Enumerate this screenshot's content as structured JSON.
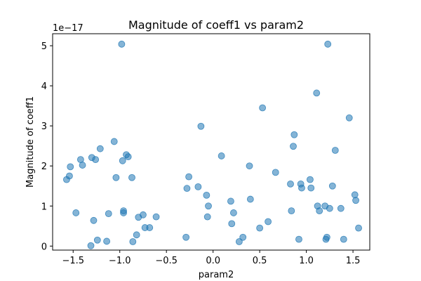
{
  "chart_data": {
    "type": "scatter",
    "title": "Magnitude of coeff1 vs param2",
    "xlabel": "param2",
    "ylabel": "Magnitude of coeff1",
    "y_offset_label": "1e−17",
    "xlim": [
      -1.72,
      1.68
    ],
    "ylim": [
      -0.1,
      5.3
    ],
    "xticks": [
      -1.5,
      -1.0,
      -0.5,
      0.0,
      0.5,
      1.0,
      1.5
    ],
    "xtick_labels": [
      "−1.5",
      "−1.0",
      "−0.5",
      "0.0",
      "0.5",
      "1.0",
      "1.5"
    ],
    "yticks": [
      0,
      1,
      2,
      3,
      4,
      5
    ],
    "ytick_labels": [
      "0",
      "1",
      "2",
      "3",
      "4",
      "5"
    ],
    "grid": false,
    "marker_color": "#1f77b4",
    "marker_alpha": 0.55,
    "points": [
      {
        "x": -1.57,
        "y": 1.66
      },
      {
        "x": -1.54,
        "y": 1.75
      },
      {
        "x": -1.53,
        "y": 1.98
      },
      {
        "x": -1.47,
        "y": 0.83
      },
      {
        "x": -1.42,
        "y": 2.16
      },
      {
        "x": -1.4,
        "y": 2.02
      },
      {
        "x": -1.31,
        "y": 0.01
      },
      {
        "x": -1.3,
        "y": 2.21
      },
      {
        "x": -1.28,
        "y": 0.64
      },
      {
        "x": -1.26,
        "y": 2.16
      },
      {
        "x": -1.24,
        "y": 0.15
      },
      {
        "x": -1.21,
        "y": 2.43
      },
      {
        "x": -1.14,
        "y": 0.12
      },
      {
        "x": -1.12,
        "y": 0.81
      },
      {
        "x": -1.06,
        "y": 2.61
      },
      {
        "x": -1.04,
        "y": 1.71
      },
      {
        "x": -0.98,
        "y": 5.04
      },
      {
        "x": -0.97,
        "y": 2.13
      },
      {
        "x": -0.96,
        "y": 0.88
      },
      {
        "x": -0.96,
        "y": 0.83
      },
      {
        "x": -0.93,
        "y": 2.28
      },
      {
        "x": -0.91,
        "y": 2.23
      },
      {
        "x": -0.87,
        "y": 1.71
      },
      {
        "x": -0.86,
        "y": 0.11
      },
      {
        "x": -0.82,
        "y": 0.28
      },
      {
        "x": -0.8,
        "y": 0.72
      },
      {
        "x": -0.75,
        "y": 0.78
      },
      {
        "x": -0.73,
        "y": 0.46
      },
      {
        "x": -0.68,
        "y": 0.46
      },
      {
        "x": -0.61,
        "y": 0.73
      },
      {
        "x": -0.29,
        "y": 0.22
      },
      {
        "x": -0.28,
        "y": 1.44
      },
      {
        "x": -0.26,
        "y": 1.73
      },
      {
        "x": -0.16,
        "y": 1.48
      },
      {
        "x": -0.13,
        "y": 2.99
      },
      {
        "x": -0.07,
        "y": 1.27
      },
      {
        "x": -0.06,
        "y": 0.73
      },
      {
        "x": -0.05,
        "y": 1.0
      },
      {
        "x": 0.09,
        "y": 2.25
      },
      {
        "x": 0.19,
        "y": 1.12
      },
      {
        "x": 0.2,
        "y": 0.56
      },
      {
        "x": 0.22,
        "y": 0.83
      },
      {
        "x": 0.28,
        "y": 0.11
      },
      {
        "x": 0.32,
        "y": 0.22
      },
      {
        "x": 0.39,
        "y": 2.0
      },
      {
        "x": 0.4,
        "y": 1.17
      },
      {
        "x": 0.5,
        "y": 0.45
      },
      {
        "x": 0.53,
        "y": 3.45
      },
      {
        "x": 0.59,
        "y": 0.61
      },
      {
        "x": 0.67,
        "y": 1.84
      },
      {
        "x": 0.83,
        "y": 1.55
      },
      {
        "x": 0.84,
        "y": 0.88
      },
      {
        "x": 0.86,
        "y": 2.49
      },
      {
        "x": 0.87,
        "y": 2.78
      },
      {
        "x": 0.92,
        "y": 0.17
      },
      {
        "x": 0.94,
        "y": 1.55
      },
      {
        "x": 0.95,
        "y": 1.45
      },
      {
        "x": 1.04,
        "y": 1.66
      },
      {
        "x": 1.05,
        "y": 1.45
      },
      {
        "x": 1.11,
        "y": 3.82
      },
      {
        "x": 1.12,
        "y": 1.0
      },
      {
        "x": 1.14,
        "y": 0.88
      },
      {
        "x": 1.2,
        "y": 1.0
      },
      {
        "x": 1.21,
        "y": 0.17
      },
      {
        "x": 1.22,
        "y": 0.22
      },
      {
        "x": 1.23,
        "y": 5.04
      },
      {
        "x": 1.25,
        "y": 0.94
      },
      {
        "x": 1.28,
        "y": 1.5
      },
      {
        "x": 1.31,
        "y": 2.39
      },
      {
        "x": 1.37,
        "y": 0.94
      },
      {
        "x": 1.4,
        "y": 0.17
      },
      {
        "x": 1.46,
        "y": 3.2
      },
      {
        "x": 1.52,
        "y": 1.28
      },
      {
        "x": 1.53,
        "y": 1.14
      },
      {
        "x": 1.56,
        "y": 0.45
      }
    ]
  }
}
